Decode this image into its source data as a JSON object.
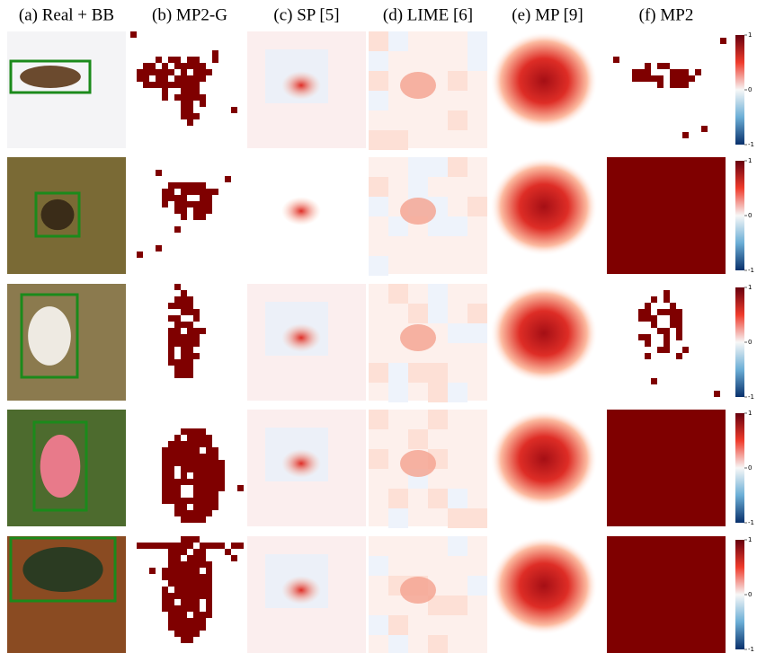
{
  "header": [
    "(a) Real + BB",
    "(b) MP2-G",
    "(c) SP [5]",
    "(d) LIME [6]",
    "(e) MP [9]",
    "(f) MP2"
  ],
  "colorbar": {
    "ticks": [
      1,
      0,
      -1
    ]
  }
}
